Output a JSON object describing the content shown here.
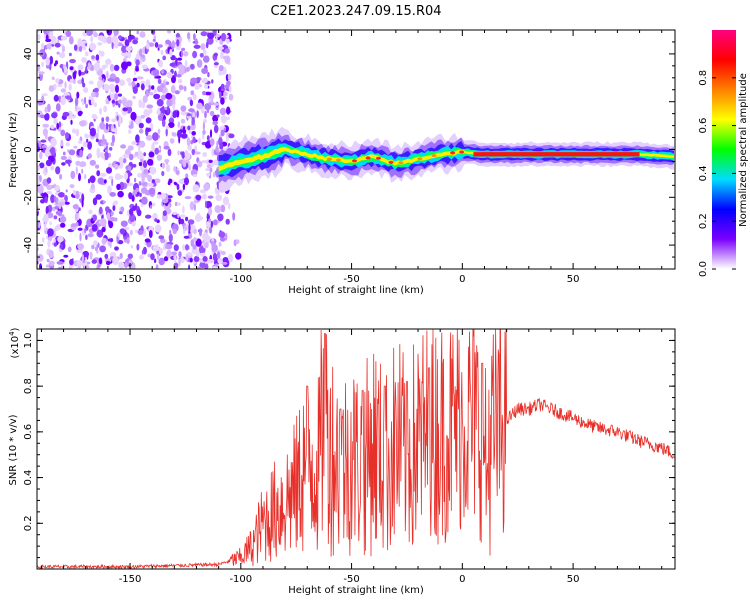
{
  "title": "C2E1.2023.247.09.15.R04",
  "chart_data": [
    {
      "type": "heatmap",
      "name": "spectrogram",
      "xlabel": "Height of straight line (km)",
      "ylabel": "Frequency (Hz)",
      "xlim": [
        -192,
        96
      ],
      "ylim": [
        -50,
        50
      ],
      "xticks": [
        -150,
        -100,
        -50,
        0,
        50
      ],
      "yticks": [
        -40,
        -20,
        0,
        20,
        40
      ],
      "noise_region_x": [
        -192,
        -105
      ],
      "signal_band": {
        "x": [
          -110,
          -100,
          -90,
          -80,
          -70,
          -60,
          -50,
          -40,
          -30,
          -20,
          -10,
          0,
          10,
          30,
          50,
          70,
          80,
          96
        ],
        "freq_hz": [
          -8,
          -5,
          -3,
          0,
          -2,
          -4,
          -5,
          -3,
          -6,
          -4,
          -2,
          -1,
          -2,
          -2,
          -2,
          -2,
          -2,
          -3
        ],
        "peak_x_range": [
          5,
          80
        ],
        "peak_freq_hz": -2
      },
      "colorbar": {
        "label": "Normalized spectral amplitude",
        "ticks": [
          0.0,
          0.2,
          0.4,
          0.6,
          0.8
        ],
        "range": [
          0,
          1
        ],
        "colors": [
          "#ffffff",
          "#7a00ff",
          "#0000ff",
          "#00dcff",
          "#00ff00",
          "#ffff00",
          "#ff8000",
          "#ff0000",
          "#ff0080"
        ]
      }
    },
    {
      "type": "line",
      "name": "snr",
      "xlabel": "Height of straight line (km)",
      "ylabel": "SNR (10 * v/v)",
      "scale_label": "(x10",
      "scale_exp": "4",
      "scale_close": ")",
      "xlim": [
        -192,
        96
      ],
      "ylim": [
        0,
        1.05
      ],
      "xticks": [
        -150,
        -100,
        -50,
        0,
        50
      ],
      "yticks": [
        0.2,
        0.4,
        0.6,
        0.8,
        1.0
      ],
      "color": "#e8302a",
      "series": [
        {
          "name": "SNR",
          "x": [
            -192,
            -150,
            -110,
            -100,
            -95,
            -90,
            -85,
            -80,
            -75,
            -70,
            -65,
            -62,
            -60,
            -55,
            -50,
            -45,
            -40,
            -35,
            -30,
            -25,
            -20,
            -15,
            -10,
            -5,
            0,
            5,
            10,
            11,
            12,
            15,
            20,
            25,
            30,
            35,
            40,
            50,
            60,
            70,
            80,
            90,
            96
          ],
          "y": [
            0.01,
            0.01,
            0.02,
            0.05,
            0.1,
            0.2,
            0.25,
            0.3,
            0.35,
            0.5,
            0.45,
            0.7,
            0.55,
            0.45,
            0.5,
            0.45,
            0.55,
            0.45,
            0.55,
            0.5,
            0.55,
            0.6,
            0.6,
            0.62,
            0.65,
            0.65,
            0.6,
            0.35,
            0.55,
            0.6,
            0.65,
            0.7,
            0.7,
            0.72,
            0.7,
            0.66,
            0.62,
            0.6,
            0.56,
            0.53,
            0.5
          ]
        }
      ],
      "spikes": [
        {
          "x": -70,
          "y": 0.8
        },
        {
          "x": -62,
          "y": 1.03
        },
        {
          "x": -55,
          "y": 0.7
        },
        {
          "x": -45,
          "y": 0.78
        },
        {
          "x": -35,
          "y": 0.8
        },
        {
          "x": -25,
          "y": 0.82
        },
        {
          "x": -15,
          "y": 0.88
        },
        {
          "x": 9,
          "y": 0.9
        }
      ]
    }
  ]
}
